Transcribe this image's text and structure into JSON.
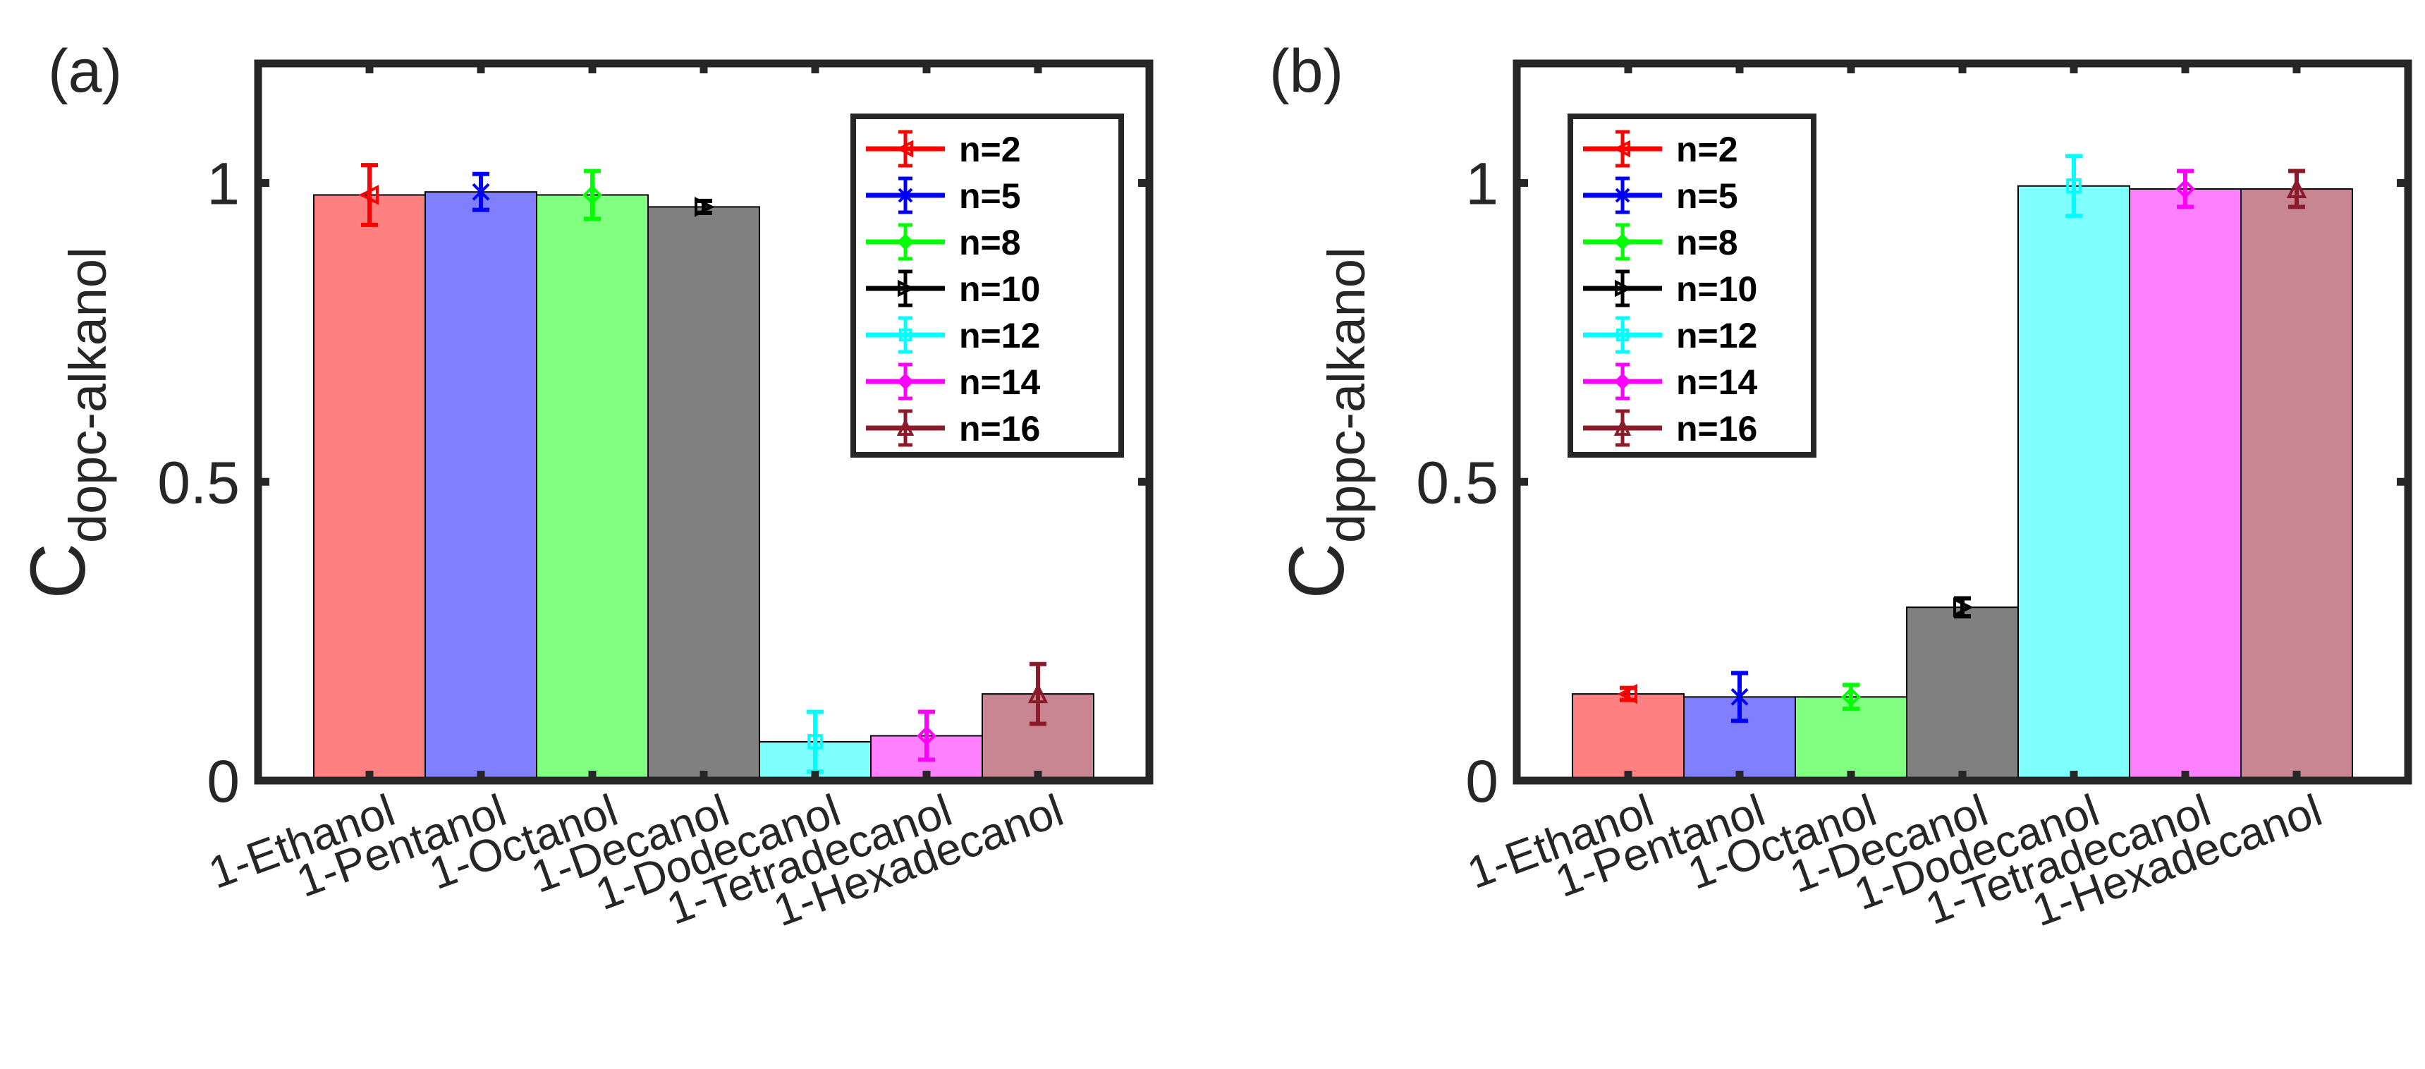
{
  "chart_data": [
    {
      "type": "bar",
      "panel_label": "(a)",
      "ylabel_main": "C",
      "ylabel_sub": "dopc-alkanol",
      "xlabel": "",
      "categories": [
        "1-Ethanol",
        "1-Pentanol",
        "1-Octanol",
        "1-Decanol",
        "1-Dodecanol",
        "1-Tetradecanol",
        "1-Hexadecanol"
      ],
      "values": [
        0.98,
        0.985,
        0.98,
        0.96,
        0.065,
        0.075,
        0.145
      ],
      "errors": [
        0.05,
        0.03,
        0.04,
        0.01,
        0.05,
        0.04,
        0.05
      ],
      "ylim": [
        0,
        1.2
      ],
      "yticks": [
        0,
        0.5,
        1
      ],
      "ytick_labels": [
        "0",
        "0.5",
        "1"
      ],
      "legend_position": "top-right"
    },
    {
      "type": "bar",
      "panel_label": "(b)",
      "ylabel_main": "C",
      "ylabel_sub": "dppc-alkanol",
      "xlabel": "",
      "categories": [
        "1-Ethanol",
        "1-Pentanol",
        "1-Octanol",
        "1-Decanol",
        "1-Dodecanol",
        "1-Tetradecanol",
        "1-Hexadecanol"
      ],
      "values": [
        0.145,
        0.14,
        0.14,
        0.29,
        0.995,
        0.99,
        0.99
      ],
      "errors": [
        0.01,
        0.04,
        0.02,
        0.015,
        0.05,
        0.03,
        0.03
      ],
      "ylim": [
        0,
        1.2
      ],
      "yticks": [
        0,
        0.5,
        1
      ],
      "ytick_labels": [
        "0",
        "0.5",
        "1"
      ],
      "legend_position": "top-left"
    }
  ],
  "legend": [
    {
      "label": "n=2",
      "color": "#ff0000",
      "marker": "triangle-left"
    },
    {
      "label": "n=5",
      "color": "#0000ff",
      "marker": "x"
    },
    {
      "label": "n=8",
      "color": "#00ff00",
      "marker": "diamond"
    },
    {
      "label": "n=10",
      "color": "#000000",
      "marker": "triangle-right"
    },
    {
      "label": "n=12",
      "color": "#00ffff",
      "marker": "square"
    },
    {
      "label": "n=14",
      "color": "#ff00ff",
      "marker": "diamond"
    },
    {
      "label": "n=16",
      "color": "#8b1a2b",
      "marker": "triangle-up"
    }
  ],
  "bar_colors": [
    "#ff8080",
    "#8080ff",
    "#80ff80",
    "#808080",
    "#80ffff",
    "#ff80ff",
    "#c88592"
  ]
}
